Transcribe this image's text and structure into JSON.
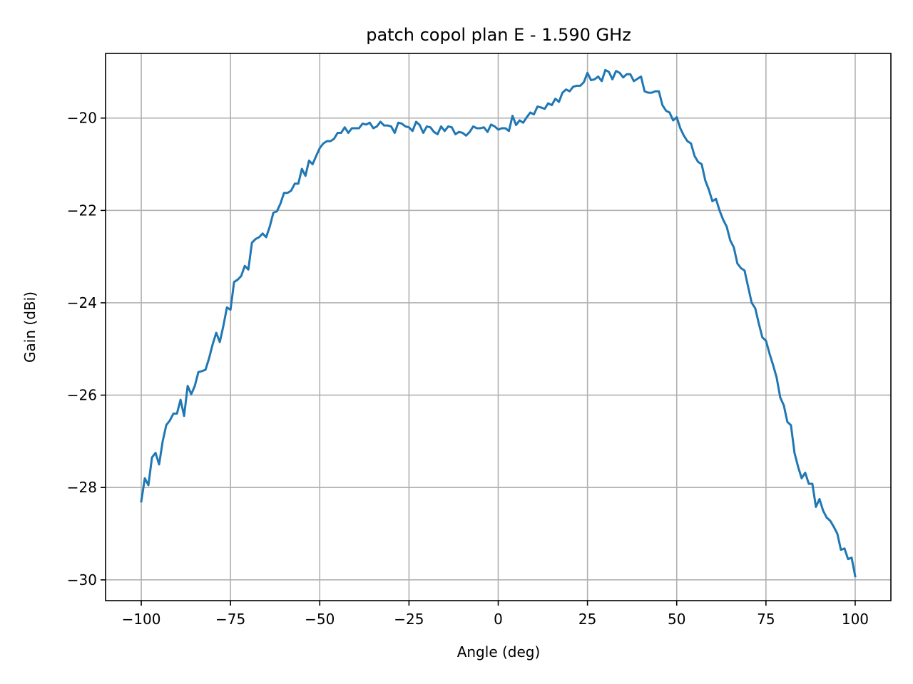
{
  "chart_data": {
    "type": "line",
    "title": "patch copol plan E - 1.590 GHz",
    "xlabel": "Angle (deg)",
    "ylabel": "Gain (dBi)",
    "xlim": [
      -110,
      110
    ],
    "ylim": [
      -30.45,
      -18.6
    ],
    "xticks": [
      -100,
      -75,
      -50,
      -25,
      0,
      25,
      50,
      75,
      100
    ],
    "xtick_labels": [
      "−100",
      "−75",
      "−50",
      "−25",
      "0",
      "25",
      "50",
      "75",
      "100"
    ],
    "yticks": [
      -30,
      -28,
      -26,
      -24,
      -22,
      -20
    ],
    "ytick_labels": [
      "−30",
      "−28",
      "−26",
      "−24",
      "−22",
      "−20"
    ],
    "grid": true,
    "series": [
      {
        "color": "#1f77b4",
        "x": [
          -100,
          -99,
          -98,
          -97,
          -96,
          -95,
          -94,
          -93,
          -92,
          -91,
          -90,
          -89,
          -88,
          -87,
          -86,
          -85,
          -84,
          -83,
          -82,
          -81,
          -80,
          -79,
          -78,
          -77,
          -76,
          -75,
          -74,
          -73,
          -72,
          -71,
          -70,
          -69,
          -68,
          -67,
          -66,
          -65,
          -64,
          -63,
          -62,
          -61,
          -60,
          -59,
          -58,
          -57,
          -56,
          -55,
          -54,
          -53,
          -52,
          -51,
          -50,
          -49,
          -48,
          -47,
          -46,
          -45,
          -44,
          -43,
          -42,
          -41,
          -40,
          -39,
          -38,
          -37,
          -36,
          -35,
          -34,
          -33,
          -32,
          -31,
          -30,
          -29,
          -28,
          -27,
          -26,
          -25,
          -24,
          -23,
          -22,
          -21,
          -20,
          -19,
          -18,
          -17,
          -16,
          -15,
          -14,
          -13,
          -12,
          -11,
          -10,
          -9,
          -8,
          -7,
          -6,
          -5,
          -4,
          -3,
          -2,
          -1,
          0,
          1,
          2,
          3,
          4,
          5,
          6,
          7,
          8,
          9,
          10,
          11,
          12,
          13,
          14,
          15,
          16,
          17,
          18,
          19,
          20,
          21,
          22,
          23,
          24,
          25,
          26,
          27,
          28,
          29,
          30,
          31,
          32,
          33,
          34,
          35,
          36,
          37,
          38,
          39,
          40,
          41,
          42,
          43,
          44,
          45,
          46,
          47,
          48,
          49,
          50,
          51,
          52,
          53,
          54,
          55,
          56,
          57,
          58,
          59,
          60,
          61,
          62,
          63,
          64,
          65,
          66,
          67,
          68,
          69,
          70,
          71,
          72,
          73,
          74,
          75,
          76,
          77,
          78,
          79,
          80,
          81,
          82,
          83,
          84,
          85,
          86,
          87,
          88,
          89,
          90,
          91,
          92,
          93,
          94,
          95,
          96,
          97,
          98,
          99,
          100
        ],
        "y": [
          -28.3,
          -27.8,
          -27.95,
          -27.35,
          -27.25,
          -27.5,
          -27.0,
          -26.65,
          -26.55,
          -26.4,
          -26.4,
          -26.1,
          -26.45,
          -25.8,
          -25.98,
          -25.8,
          -25.5,
          -25.48,
          -25.45,
          -25.2,
          -24.9,
          -24.65,
          -24.85,
          -24.5,
          -24.1,
          -24.15,
          -23.55,
          -23.5,
          -23.42,
          -23.2,
          -23.28,
          -22.7,
          -22.62,
          -22.58,
          -22.5,
          -22.58,
          -22.35,
          -22.05,
          -22.02,
          -21.85,
          -21.62,
          -21.62,
          -21.57,
          -21.42,
          -21.42,
          -21.1,
          -21.25,
          -20.92,
          -21.0,
          -20.82,
          -20.65,
          -20.55,
          -20.5,
          -20.5,
          -20.45,
          -20.32,
          -20.32,
          -20.2,
          -20.32,
          -20.22,
          -20.22,
          -20.22,
          -20.12,
          -20.14,
          -20.1,
          -20.22,
          -20.18,
          -20.08,
          -20.16,
          -20.16,
          -20.18,
          -20.32,
          -20.1,
          -20.12,
          -20.18,
          -20.2,
          -20.28,
          -20.08,
          -20.15,
          -20.32,
          -20.18,
          -20.2,
          -20.3,
          -20.35,
          -20.18,
          -20.28,
          -20.18,
          -20.2,
          -20.35,
          -20.3,
          -20.32,
          -20.38,
          -20.3,
          -20.18,
          -20.22,
          -20.22,
          -20.2,
          -20.3,
          -20.14,
          -20.18,
          -20.25,
          -20.22,
          -20.22,
          -20.28,
          -19.95,
          -20.15,
          -20.05,
          -20.1,
          -19.98,
          -19.88,
          -19.92,
          -19.75,
          -19.77,
          -19.8,
          -19.68,
          -19.72,
          -19.58,
          -19.65,
          -19.45,
          -19.38,
          -19.42,
          -19.32,
          -19.3,
          -19.3,
          -19.22,
          -19.02,
          -19.18,
          -19.16,
          -19.1,
          -19.2,
          -18.96,
          -19.0,
          -19.16,
          -18.98,
          -19.02,
          -19.12,
          -19.05,
          -19.05,
          -19.2,
          -19.15,
          -19.1,
          -19.42,
          -19.45,
          -19.45,
          -19.42,
          -19.42,
          -19.72,
          -19.84,
          -19.88,
          -20.05,
          -19.98,
          -20.22,
          -20.38,
          -20.5,
          -20.55,
          -20.82,
          -20.95,
          -21.0,
          -21.35,
          -21.55,
          -21.8,
          -21.75,
          -22.0,
          -22.2,
          -22.35,
          -22.65,
          -22.8,
          -23.15,
          -23.25,
          -23.3,
          -23.65,
          -24.0,
          -24.12,
          -24.45,
          -24.75,
          -24.82,
          -25.1,
          -25.35,
          -25.62,
          -26.05,
          -26.22,
          -26.58,
          -26.65,
          -27.25,
          -27.55,
          -27.8,
          -27.68,
          -27.92,
          -27.92,
          -28.42,
          -28.25,
          -28.5,
          -28.65,
          -28.72,
          -28.85,
          -29.0,
          -29.35,
          -29.32,
          -29.55,
          -29.52,
          -29.92
        ]
      }
    ]
  }
}
